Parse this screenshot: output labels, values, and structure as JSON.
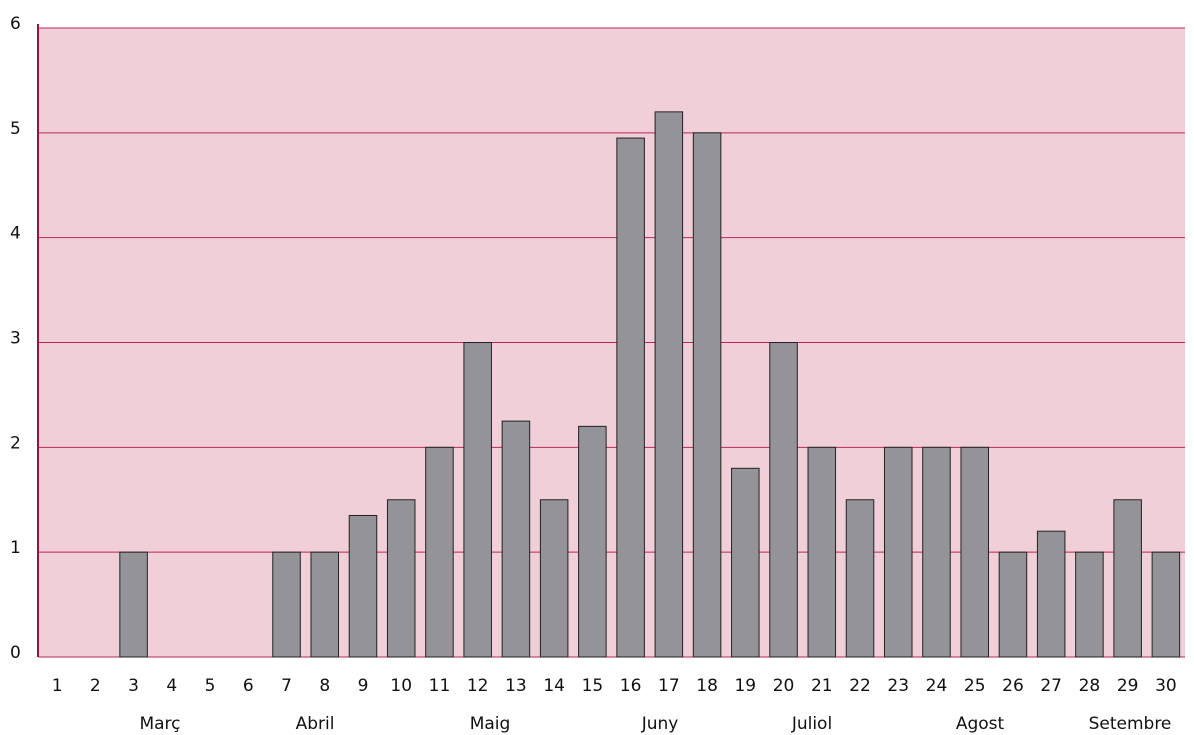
{
  "chart_data": {
    "type": "bar",
    "categories": [
      "1",
      "2",
      "3",
      "4",
      "5",
      "6",
      "7",
      "8",
      "9",
      "10",
      "11",
      "12",
      "13",
      "14",
      "15",
      "16",
      "17",
      "18",
      "19",
      "20",
      "21",
      "22",
      "23",
      "24",
      "25",
      "26",
      "27",
      "28",
      "29",
      "30"
    ],
    "values": [
      0,
      0,
      1,
      0,
      0,
      0,
      1,
      1,
      1.35,
      1.5,
      2,
      3,
      2.25,
      1.5,
      2.2,
      4.95,
      5.2,
      5.0,
      1.8,
      3,
      2,
      1.5,
      2,
      2,
      2,
      1,
      1.2,
      1,
      1.5,
      1
    ],
    "color": "#949498",
    "month_labels": [
      "Març",
      "Abril",
      "Maig",
      "Juny",
      "Juliol",
      "Agost",
      "Setembre"
    ],
    "ylim": [
      0,
      6
    ],
    "yticks": [
      0,
      1,
      2,
      3,
      4,
      5,
      6
    ],
    "grid": true
  }
}
